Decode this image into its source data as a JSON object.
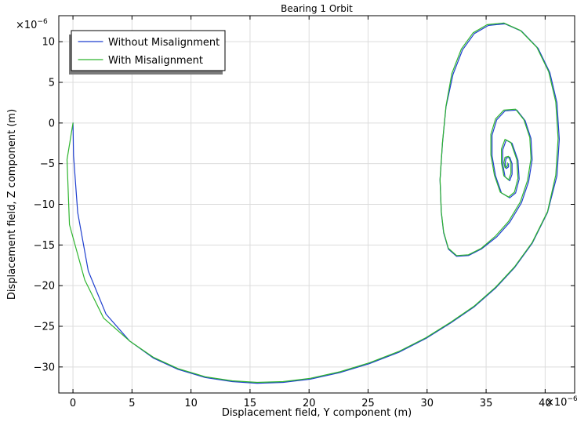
{
  "chart_data": {
    "type": "line",
    "title": "Bearing 1 Orbit",
    "xlabel": "Displacement field, Y component (m)",
    "ylabel": "Displacement field, Z component (m)",
    "x_multiplier": "×10",
    "x_exponent": "−6",
    "y_multiplier": "×10",
    "y_exponent": "−6",
    "xlim": [
      -1.2,
      42.5
    ],
    "ylim": [
      -33.2,
      13.2
    ],
    "xticks": [
      0,
      5,
      10,
      15,
      20,
      25,
      30,
      35,
      40
    ],
    "xtick_labels": [
      "0",
      "5",
      "10",
      "15",
      "20",
      "25",
      "30",
      "35",
      "40"
    ],
    "yticks": [
      -30,
      -25,
      -20,
      -15,
      -10,
      -5,
      0,
      5,
      10
    ],
    "ytick_labels": [
      "−30",
      "−25",
      "−20",
      "−15",
      "−10",
      "−5",
      "0",
      "5",
      "10"
    ],
    "grid": true,
    "legend_position": "top-left",
    "series": [
      {
        "name": "Without Misalignment",
        "color": "#1f3fcf",
        "x": [
          0,
          0.05,
          0.4,
          1.3,
          2.8,
          4.8,
          6.8,
          8.9,
          11.2,
          13.5,
          15.6,
          17.8,
          20.1,
          22.6,
          25.1,
          27.6,
          29.9,
          32.0,
          34.0,
          35.8,
          37.4,
          38.9,
          40.2,
          41.0,
          41.2,
          41.0,
          40.4,
          39.4,
          38.0,
          36.6,
          35.2,
          34.0,
          33.0,
          32.2,
          31.6,
          31.3,
          31.1,
          31.2,
          31.4,
          31.8,
          32.5,
          33.5,
          34.6,
          35.9,
          37.0,
          38.0,
          38.6,
          38.9,
          38.8,
          38.3,
          37.6,
          36.6,
          35.9,
          35.5,
          35.5,
          35.8,
          36.3,
          37.0,
          37.5,
          37.8,
          37.7,
          37.2,
          36.7,
          36.4,
          36.4,
          36.6,
          37.0,
          37.2,
          37.2,
          37.0,
          36.7,
          36.6,
          36.7,
          36.9,
          36.9
        ],
        "y": [
          0,
          -4,
          -11,
          -18.2,
          -23.5,
          -26.8,
          -28.9,
          -30.3,
          -31.3,
          -31.8,
          -32.0,
          -31.9,
          -31.5,
          -30.7,
          -29.6,
          -28.2,
          -26.5,
          -24.6,
          -22.6,
          -20.3,
          -17.8,
          -14.8,
          -11.0,
          -6.5,
          -2.0,
          2.5,
          6.2,
          9.2,
          11.3,
          12.2,
          12.0,
          11.0,
          9.0,
          6.0,
          2.0,
          -2.5,
          -7.0,
          -11.0,
          -13.5,
          -15.5,
          -16.4,
          -16.3,
          -15.5,
          -14.0,
          -12.2,
          -9.8,
          -7.2,
          -4.5,
          -1.9,
          0.3,
          1.6,
          1.5,
          0.4,
          -1.5,
          -4.0,
          -6.5,
          -8.6,
          -9.2,
          -8.6,
          -6.9,
          -4.6,
          -2.5,
          -2.1,
          -3.3,
          -5.0,
          -6.6,
          -7.1,
          -6.3,
          -5.0,
          -4.2,
          -4.3,
          -5.0,
          -5.6,
          -5.4,
          -5.0
        ]
      },
      {
        "name": "With Misalignment",
        "color": "#2fb52f",
        "x": [
          0,
          -0.5,
          -0.3,
          1.0,
          2.6,
          4.8,
          6.8,
          8.9,
          11.2,
          13.5,
          15.6,
          17.8,
          20.1,
          22.6,
          25.1,
          27.6,
          29.9,
          32.0,
          34.0,
          35.8,
          37.4,
          38.9,
          40.2,
          40.9,
          41.1,
          40.9,
          40.3,
          39.3,
          37.9,
          36.5,
          35.1,
          33.9,
          32.9,
          32.1,
          31.6,
          31.3,
          31.1,
          31.2,
          31.4,
          31.8,
          32.5,
          33.5,
          34.6,
          35.8,
          36.9,
          37.9,
          38.5,
          38.8,
          38.7,
          38.2,
          37.5,
          36.5,
          35.8,
          35.4,
          35.4,
          35.7,
          36.2,
          36.9,
          37.4,
          37.7,
          37.6,
          37.1,
          36.6,
          36.3,
          36.3,
          36.5,
          36.9,
          37.1,
          37.1,
          36.9,
          36.6,
          36.5,
          36.6,
          36.8,
          36.8
        ],
        "y": [
          0,
          -4.5,
          -12.5,
          -19.3,
          -24.0,
          -26.8,
          -28.8,
          -30.2,
          -31.2,
          -31.7,
          -31.9,
          -31.8,
          -31.4,
          -30.6,
          -29.5,
          -28.1,
          -26.4,
          -24.5,
          -22.5,
          -20.2,
          -17.7,
          -14.7,
          -10.9,
          -6.4,
          -1.9,
          2.6,
          6.3,
          9.3,
          11.4,
          12.3,
          12.1,
          11.1,
          9.1,
          6.1,
          2.1,
          -2.4,
          -6.9,
          -10.9,
          -13.4,
          -15.4,
          -16.3,
          -16.2,
          -15.4,
          -13.9,
          -12.1,
          -9.7,
          -7.1,
          -4.4,
          -1.8,
          0.4,
          1.7,
          1.6,
          0.5,
          -1.4,
          -3.9,
          -6.4,
          -8.5,
          -9.1,
          -8.5,
          -6.8,
          -4.5,
          -2.4,
          -2.0,
          -3.2,
          -4.9,
          -6.5,
          -7.0,
          -6.2,
          -4.9,
          -4.1,
          -4.2,
          -4.9,
          -5.5,
          -5.3,
          -4.9
        ]
      }
    ]
  }
}
